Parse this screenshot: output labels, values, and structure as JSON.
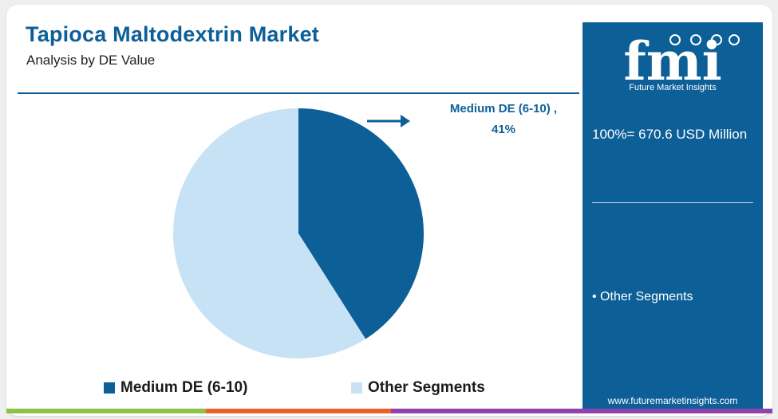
{
  "header": {
    "title": "Tapioca Maltodextrin Market",
    "subtitle": "Analysis by DE Value"
  },
  "chart_data": {
    "type": "pie",
    "slices": [
      {
        "label": "Medium DE (6-10)",
        "value": 41,
        "color": "#0d5f98"
      },
      {
        "label": "Other Segments",
        "value": 59,
        "color": "#c7e2f4"
      }
    ],
    "annotation": {
      "line1": "Medium DE (6-10) ,",
      "line2": "41%"
    },
    "legend_position": "bottom"
  },
  "legend": {
    "items": [
      {
        "label": "Medium DE (6-10)",
        "color": "#0d5f98"
      },
      {
        "label": "Other Segments",
        "color": "#c7e2f4"
      }
    ]
  },
  "panel": {
    "logo_text": "fmi",
    "logo_subtitle": "Future Market Insights",
    "total": "100%= 670.6 USD Million",
    "item": "• Other Segments",
    "url": "www.futuremarketinsights.com"
  },
  "colors": {
    "brand_blue": "#0d5f98",
    "light_blue": "#c7e2f4",
    "bar": [
      "#8bc34a",
      "#e8622c",
      "#8e44ad"
    ]
  },
  "icons": [
    "arrow-right-icon",
    "fmi-logo"
  ]
}
